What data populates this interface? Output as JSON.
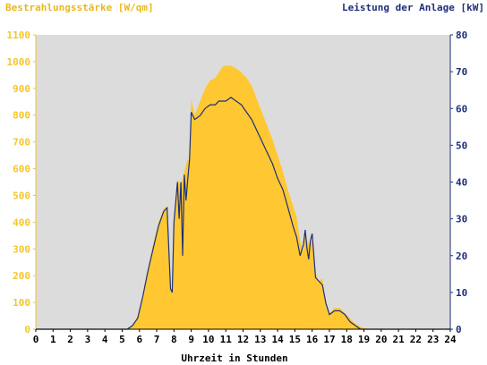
{
  "chart_data": {
    "type": "area",
    "ylabel_left": "Bestrahlungsstärke [W/qm]",
    "ylabel_right": "Leistung der Anlage [kW]",
    "xlabel": "Uhrzeit in Stunden",
    "xlim": [
      0,
      24
    ],
    "ylim_left": [
      0,
      1100
    ],
    "ylim_right": [
      0,
      80
    ],
    "x_ticks": [
      "0",
      "1",
      "2",
      "3",
      "4",
      "5",
      "6",
      "7",
      "8",
      "9",
      "10",
      "11",
      "12",
      "13",
      "14",
      "15",
      "16",
      "17",
      "18",
      "19",
      "20",
      "21",
      "22",
      "23",
      "24"
    ],
    "y_left_ticks": [
      "0",
      "100",
      "200",
      "300",
      "400",
      "500",
      "600",
      "700",
      "800",
      "900",
      "1000",
      "1100"
    ],
    "y_right_ticks": [
      "0",
      "10",
      "20",
      "30",
      "40",
      "50",
      "60",
      "70",
      "80"
    ],
    "grid": false,
    "colors": {
      "irradiance": "#ffc832",
      "power": "#1e2f7a",
      "plot_background": "#dcdcdc",
      "left_axis": "#f5c62a",
      "right_axis": "#1e2f7a"
    },
    "series": [
      {
        "axis": "left",
        "style": "area",
        "x": [
          0,
          5.3,
          5.6,
          5.9,
          6.2,
          6.5,
          6.8,
          7.1,
          7.4,
          7.6,
          7.8,
          7.9,
          8.0,
          8.2,
          8.4,
          8.6,
          8.8,
          8.9,
          9.0,
          9.2,
          9.5,
          9.8,
          10.1,
          10.4,
          10.6,
          10.8,
          11.0,
          11.3,
          11.6,
          11.9,
          12.2,
          12.5,
          12.8,
          13.1,
          13.4,
          13.7,
          14.0,
          14.3,
          14.6,
          14.9,
          15.1,
          15.3,
          15.5,
          15.6,
          15.8,
          16.0,
          16.2,
          16.4,
          16.6,
          16.8,
          17.0,
          17.3,
          17.6,
          17.9,
          18.2,
          18.5,
          18.8,
          19.1,
          19.4,
          24
        ],
        "values": [
          0,
          0,
          15,
          50,
          130,
          230,
          320,
          400,
          450,
          460,
          160,
          140,
          420,
          560,
          540,
          590,
          640,
          620,
          860,
          800,
          850,
          900,
          930,
          940,
          960,
          980,
          985,
          985,
          975,
          960,
          940,
          910,
          860,
          810,
          760,
          710,
          650,
          590,
          520,
          460,
          420,
          330,
          290,
          360,
          320,
          330,
          210,
          180,
          190,
          90,
          60,
          80,
          80,
          60,
          40,
          20,
          10,
          3,
          0,
          0
        ]
      },
      {
        "axis": "right",
        "style": "line",
        "x": [
          0,
          5.3,
          5.6,
          5.9,
          6.2,
          6.5,
          6.8,
          7.1,
          7.4,
          7.6,
          7.8,
          7.9,
          8.0,
          8.2,
          8.3,
          8.4,
          8.5,
          8.6,
          8.7,
          8.8,
          8.9,
          9.0,
          9.2,
          9.5,
          9.8,
          10.1,
          10.4,
          10.6,
          10.8,
          11.0,
          11.3,
          11.6,
          11.9,
          12.2,
          12.5,
          12.8,
          13.1,
          13.4,
          13.7,
          14.0,
          14.3,
          14.6,
          14.9,
          15.1,
          15.3,
          15.5,
          15.6,
          15.7,
          15.8,
          15.9,
          16.0,
          16.2,
          16.4,
          16.6,
          16.8,
          17.0,
          17.3,
          17.6,
          17.9,
          18.2,
          18.5,
          18.8,
          19.1,
          19.4,
          24
        ],
        "values": [
          0,
          0,
          1,
          3,
          9,
          16,
          22,
          28,
          32,
          33,
          11,
          10,
          29,
          40,
          30,
          40,
          20,
          42,
          35,
          41,
          46,
          59,
          57,
          58,
          60,
          61,
          61,
          62,
          62,
          62,
          63,
          62,
          61,
          59,
          57,
          54,
          51,
          48,
          45,
          41,
          38,
          33,
          28,
          25,
          20,
          23,
          27,
          22,
          19,
          24,
          26,
          14,
          13,
          12,
          7,
          4,
          5,
          5,
          4,
          2,
          1,
          0,
          0,
          0,
          0
        ]
      }
    ]
  }
}
